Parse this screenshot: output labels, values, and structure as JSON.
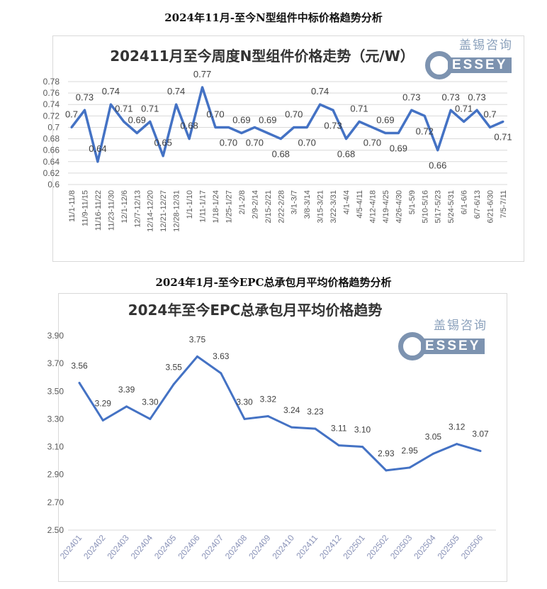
{
  "doc": {
    "title1": "2024年11月-至今N型组件中标价格趋势分析",
    "title2": "2024年1月-至今EPC总承包月平均价格趋势分析",
    "watermark_cn": "盖锡咨询",
    "watermark_en": "GESSEY"
  },
  "chart_data": [
    {
      "type": "line",
      "title": "202411月至今周度N型组件价格走势（元/W）",
      "xlabel": "",
      "ylabel": "",
      "ylim": [
        0.6,
        0.78
      ],
      "yticks": [
        "0.6",
        "0.62",
        "0.64",
        "0.66",
        "0.68",
        "0.7",
        "0.72",
        "0.74",
        "0.76",
        "0.78"
      ],
      "grid": true,
      "color": "#4472c4",
      "categories": [
        "11/1-11/8",
        "11/9-11/15",
        "11/16-11/22",
        "11/23-11/30",
        "12/1-12/6",
        "12/7-12/13",
        "12/14-12/20",
        "12/21-12/27",
        "12/28-12/31",
        "1/1-1/10",
        "1/11-1/17",
        "1/18-1/24",
        "1/25-1/27",
        "2/1-2/8",
        "2/9-2/14",
        "2/15-2/21",
        "2/22-2/28",
        "3/1-3/7",
        "3/8-3/14",
        "3/15-3/21",
        "3/22-3/31",
        "4/1-4/4",
        "4/5-4/11",
        "4/12-4/18",
        "4/19-4/25",
        "4/26-4/30",
        "5/1-5/9",
        "5/10-5/16",
        "5/17-5/23",
        "5/24-5/31",
        "6/1-6/6",
        "6/7-6/13",
        "6/21-6/30",
        "7/5-7/11"
      ],
      "values": [
        0.7,
        0.73,
        0.64,
        0.74,
        0.71,
        0.69,
        0.71,
        0.65,
        0.74,
        0.68,
        0.77,
        0.7,
        0.7,
        0.69,
        0.7,
        0.69,
        0.68,
        0.7,
        0.7,
        0.74,
        0.73,
        0.68,
        0.71,
        0.7,
        0.69,
        0.69,
        0.73,
        0.72,
        0.66,
        0.73,
        0.71,
        0.73,
        0.7,
        0.71
      ],
      "labels": [
        "0.7",
        "0.73",
        "0.64",
        "0.74",
        "0.71",
        "0.69",
        "0.71",
        "0.65",
        "0.74",
        "0.68",
        "0.77",
        "0.70",
        "0.70",
        "0.69",
        "0.70",
        "0.69",
        "0.68",
        "0.70",
        "0.70",
        "0.74",
        "0.73",
        "0.68",
        "0.71",
        "0.70",
        "0.69",
        "0.69",
        "0.73",
        "0.72",
        "0.66",
        "0.73",
        "0.71",
        "0.73",
        "0.7",
        "0.71"
      ]
    },
    {
      "type": "line",
      "title": "2024年至今EPC总承包月平均价格趋势",
      "xlabel": "",
      "ylabel": "",
      "ylim": [
        2.5,
        3.9
      ],
      "yticks": [
        "2.50",
        "2.70",
        "2.90",
        "3.10",
        "3.30",
        "3.50",
        "3.70",
        "3.90"
      ],
      "grid": false,
      "color": "#4472c4",
      "categories": [
        "202401",
        "202402",
        "202403",
        "202404",
        "202405",
        "202406",
        "202407",
        "202408",
        "202409",
        "202410",
        "202411",
        "202412",
        "202501",
        "202502",
        "202503",
        "202504",
        "202505",
        "202506"
      ],
      "values": [
        3.56,
        3.29,
        3.39,
        3.3,
        3.55,
        3.75,
        3.63,
        3.3,
        3.32,
        3.24,
        3.23,
        3.11,
        3.1,
        2.93,
        2.95,
        3.05,
        3.12,
        3.07
      ],
      "labels": [
        "3.56",
        "3.29",
        "3.39",
        "3.30",
        "3.55",
        "3.75",
        "3.63",
        "3.30",
        "3.32",
        "3.24",
        "3.23",
        "3.11",
        "3.10",
        "2.93",
        "2.95",
        "3.05",
        "3.12",
        "3.07"
      ]
    }
  ]
}
